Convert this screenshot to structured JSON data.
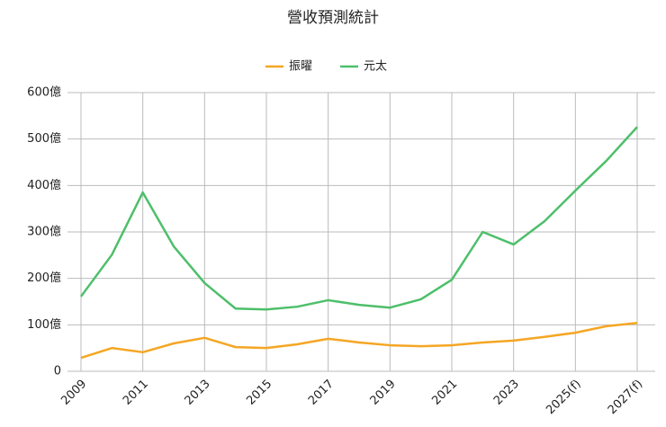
{
  "chart_data": {
    "type": "line",
    "title": "營收預測統計",
    "categories": [
      "2009",
      null,
      "2011",
      null,
      "2013",
      null,
      "2015",
      null,
      "2017",
      null,
      "2019",
      null,
      "2021",
      null,
      "2023",
      null,
      "2025(f)",
      null,
      "2027(f)"
    ],
    "series": [
      {
        "name": "振曜",
        "color": "#f5a623",
        "values": [
          29,
          50,
          41,
          60,
          72,
          52,
          50,
          58,
          70,
          62,
          56,
          54,
          56,
          62,
          66,
          74,
          83,
          97,
          104
        ]
      },
      {
        "name": "元太",
        "color": "#4dbf6a",
        "values": [
          161,
          251,
          385,
          269,
          190,
          135,
          133,
          139,
          153,
          143,
          137,
          155,
          197,
          300,
          273,
          323,
          389,
          453,
          526
        ]
      }
    ],
    "ylim": [
      0,
      600
    ],
    "yticks": [
      0,
      {
        "value": 100,
        "label": "100億"
      },
      {
        "value": 200,
        "label": "200億"
      },
      {
        "value": 300,
        "label": "300億"
      },
      {
        "value": 400,
        "label": "400億"
      },
      {
        "value": 500,
        "label": "500億"
      },
      {
        "value": 600,
        "label": "600億"
      }
    ],
    "grid": true,
    "legend": "top"
  }
}
